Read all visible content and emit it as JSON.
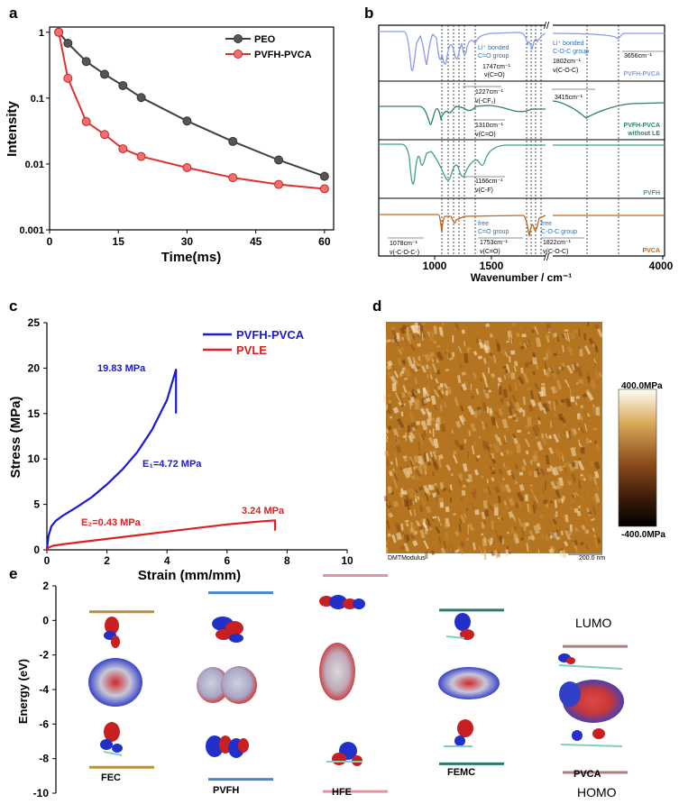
{
  "panels": {
    "a": "a",
    "b": "b",
    "c": "c",
    "d": "d",
    "e": "e"
  },
  "colors": {
    "peo": "#404040",
    "pvfh_pvca": "#e03030",
    "blue": "#1a1ad0",
    "red": "#dd2020",
    "teal": "#2f7f72",
    "green": "#43a08a",
    "orange": "#c0661a",
    "lavender": "#8a9be8",
    "bar_gold": "#b8903a",
    "bar_blue": "#4a86c8",
    "bar_pink": "#e88fa0",
    "bar_teal": "#2a7a6e",
    "bar_mauve": "#a8807e"
  },
  "chart_data": [
    {
      "panel": "a",
      "type": "line",
      "xlabel": "Time(ms)",
      "ylabel": "Intensity",
      "xlim": [
        0,
        62
      ],
      "ylim": [
        0.001,
        1.2
      ],
      "yscale": "log",
      "xticks": [
        "0",
        "15",
        "30",
        "45",
        "60"
      ],
      "yticks": [
        "0.001",
        "0.01",
        "0.1",
        "1"
      ],
      "legend_position": "top-right",
      "series": [
        {
          "name": "PEO",
          "x": [
            2,
            4,
            8,
            12,
            16,
            20,
            30,
            40,
            50,
            60
          ],
          "values": [
            1,
            0.68,
            0.36,
            0.23,
            0.155,
            0.102,
            0.045,
            0.022,
            0.0115,
            0.0065
          ]
        },
        {
          "name": "PVFH-PVCA",
          "x": [
            2,
            4,
            8,
            12,
            16,
            20,
            30,
            40,
            50,
            60
          ],
          "values": [
            1,
            0.2,
            0.044,
            0.028,
            0.017,
            0.013,
            0.0088,
            0.0062,
            0.0049,
            0.0042
          ]
        }
      ]
    },
    {
      "panel": "b",
      "type": "line",
      "xlabel": "Wavenumber / cm⁻¹",
      "xticks": [
        "1000",
        "1500",
        "4000"
      ],
      "traces": [
        {
          "name": "PVFH-PVCA"
        },
        {
          "name": "PVFH-PVCA",
          "name2": "without LE"
        },
        {
          "name": "PVFH"
        },
        {
          "name": "PVCA"
        }
      ],
      "annotations": {
        "t1a": "Li⁺ bonded",
        "t1b": "C=O group",
        "t1c": "1747cm⁻¹",
        "t1d": "ν(C=O)",
        "t2a": "Li⁺ bonded",
        "t2b": "C-O-C group",
        "t2c": "1802cm⁻¹",
        "t2d": "ν(C-O-C)",
        "t3": "3656cm⁻¹",
        "t4a": "1227cm⁻¹",
        "t4b": "ν(-CF₂)",
        "t5": "3415cm⁻¹",
        "t6a": "1310cm⁻¹",
        "t6b": "ν(C=O)",
        "t7a": "1166cm⁻¹",
        "t7b": "ν(C-F)",
        "t8a": "1078cm⁻¹",
        "t8b": "ν(-C-O-C-)",
        "t9a": "free",
        "t9b": "C=O group",
        "t9c": "1753cm⁻¹",
        "t9d": "ν(C=O)",
        "t10a": "free",
        "t10b": "C-O-C group",
        "t10c": "1822cm⁻¹",
        "t10d": "ν(C-O-C)"
      }
    },
    {
      "panel": "c",
      "type": "line",
      "xlabel": "Strain (mm/mm)",
      "ylabel": "Stress (MPa)",
      "xlim": [
        0,
        10
      ],
      "ylim": [
        0,
        25
      ],
      "xticks": [
        "0",
        "2",
        "4",
        "6",
        "8",
        "10"
      ],
      "yticks": [
        "0",
        "5",
        "10",
        "15",
        "20",
        "25"
      ],
      "legend_position": "top-right",
      "series": [
        {
          "name": "PVFH-PVCA",
          "x": [
            0,
            0.05,
            0.15,
            0.3,
            0.5,
            1,
            1.5,
            2,
            2.5,
            3,
            3.5,
            4,
            4.3,
            4.3
          ],
          "values": [
            0,
            1.5,
            2.6,
            3.2,
            3.7,
            4.7,
            5.8,
            7.2,
            8.8,
            10.7,
            13.2,
            16.5,
            19.83,
            15
          ]
        },
        {
          "name": "PVLE",
          "x": [
            0,
            0.05,
            0.2,
            0.5,
            1,
            2,
            3,
            4,
            5,
            6,
            7,
            7.6,
            7.6
          ],
          "values": [
            0,
            0.25,
            0.45,
            0.6,
            0.8,
            1.2,
            1.6,
            2.0,
            2.4,
            2.8,
            3.1,
            3.24,
            2.1
          ]
        }
      ],
      "annotations": {
        "peak1": "19.83 MPa",
        "e1": "E₁=4.72 MPa",
        "peak2": "3.24 MPa",
        "e2": "E₂=0.43 MPa"
      }
    }
  ],
  "afm": {
    "max": "400.0MPa",
    "min": "-400.0MPa",
    "mode": "DMTModulus",
    "scale": "200.0 nm"
  },
  "energy": {
    "ylabel": "Energy (eV)",
    "yticks": [
      "2",
      "0",
      "-2",
      "-4",
      "-6",
      "-8",
      "-10"
    ],
    "molecules": [
      "FEC",
      "PVFH",
      "HFE",
      "FEMC",
      "PVCA"
    ],
    "lumo_label": "LUMO",
    "homo_label": "HOMO",
    "lumo_ev": [
      0.5,
      1.6,
      2.6,
      0.6,
      -1.5
    ],
    "homo_ev": [
      -8.5,
      -9.2,
      -9.9,
      -8.3,
      -8.8
    ]
  }
}
